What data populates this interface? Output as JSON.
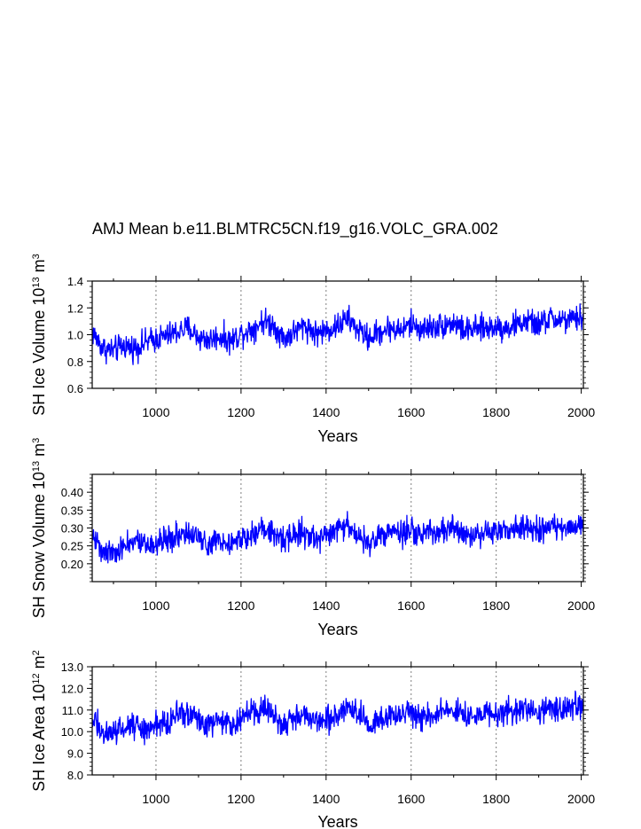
{
  "title": "AMJ Mean b.e11.BLMTRC5CN.f19_g16.VOLC_GRA.002",
  "colors": {
    "series": "#0000ff",
    "axis": "#000000",
    "refline": "#7f7f7f"
  },
  "chart_data": [
    {
      "type": "line",
      "ylabel": "SH Ice Volume 10^13 m^3",
      "xlabel": "Years",
      "xlim": [
        850,
        2005
      ],
      "ylim": [
        0.6,
        1.4
      ],
      "xticks": [
        "1000",
        "1200",
        "1400",
        "1600",
        "1800",
        "2000"
      ],
      "yticks": [
        "0.6",
        "0.8",
        "1.0",
        "1.2",
        "1.4"
      ],
      "ref_x": [
        1000,
        1200,
        1400,
        1600,
        1800,
        2000
      ],
      "series": [
        {
          "x": [
            850,
            875,
            900,
            925,
            950,
            975,
            1000,
            1025,
            1050,
            1075,
            1100,
            1125,
            1150,
            1175,
            1200,
            1225,
            1250,
            1275,
            1300,
            1325,
            1350,
            1375,
            1400,
            1425,
            1450,
            1475,
            1500,
            1525,
            1550,
            1575,
            1600,
            1625,
            1650,
            1675,
            1700,
            1725,
            1750,
            1775,
            1800,
            1825,
            1850,
            1875,
            1900,
            1925,
            1950,
            1975,
            2000
          ],
          "values": [
            1.02,
            0.9,
            0.88,
            0.92,
            0.9,
            0.94,
            0.97,
            0.99,
            1.02,
            1.05,
            0.98,
            0.96,
            0.99,
            0.95,
            1.01,
            1.04,
            1.1,
            1.08,
            0.97,
            1.02,
            1.07,
            1.01,
            1.03,
            1.06,
            1.12,
            1.04,
            0.97,
            1.02,
            1.05,
            1.03,
            1.08,
            1.04,
            1.06,
            1.07,
            1.09,
            1.03,
            1.04,
            1.05,
            1.06,
            1.05,
            1.08,
            1.1,
            1.07,
            1.12,
            1.11,
            1.1,
            1.13
          ]
        }
      ]
    },
    {
      "type": "line",
      "ylabel": "SH Snow Volume 10^13 m^3",
      "xlabel": "Years",
      "xlim": [
        850,
        2005
      ],
      "ylim": [
        0.15,
        0.45
      ],
      "xticks": [
        "1000",
        "1200",
        "1400",
        "1600",
        "1800",
        "2000"
      ],
      "yticks": [
        "0.20",
        "0.25",
        "0.30",
        "0.35",
        "0.40"
      ],
      "ref_x": [
        1000,
        1200,
        1400,
        1600,
        1800,
        2000
      ],
      "series": [
        {
          "x": [
            850,
            875,
            900,
            925,
            950,
            975,
            1000,
            1025,
            1050,
            1075,
            1100,
            1125,
            1150,
            1175,
            1200,
            1225,
            1250,
            1275,
            1300,
            1325,
            1350,
            1375,
            1400,
            1425,
            1450,
            1475,
            1500,
            1525,
            1550,
            1575,
            1600,
            1625,
            1650,
            1675,
            1700,
            1725,
            1750,
            1775,
            1800,
            1825,
            1850,
            1875,
            1900,
            1925,
            1950,
            1975,
            2000
          ],
          "values": [
            0.28,
            0.24,
            0.23,
            0.25,
            0.26,
            0.25,
            0.26,
            0.27,
            0.28,
            0.28,
            0.27,
            0.26,
            0.27,
            0.26,
            0.27,
            0.28,
            0.3,
            0.29,
            0.27,
            0.28,
            0.29,
            0.27,
            0.28,
            0.29,
            0.31,
            0.28,
            0.26,
            0.28,
            0.29,
            0.28,
            0.29,
            0.28,
            0.29,
            0.29,
            0.3,
            0.28,
            0.28,
            0.29,
            0.29,
            0.29,
            0.3,
            0.3,
            0.29,
            0.31,
            0.3,
            0.3,
            0.31
          ]
        }
      ]
    },
    {
      "type": "line",
      "ylabel": "SH Ice Area 10^12 m^2",
      "xlabel": "Years",
      "xlim": [
        850,
        2005
      ],
      "ylim": [
        8.0,
        13.0
      ],
      "xticks": [
        "1000",
        "1200",
        "1400",
        "1600",
        "1800",
        "2000"
      ],
      "yticks": [
        "8.0",
        "9.0",
        "10.0",
        "11.0",
        "12.0",
        "13.0"
      ],
      "ref_x": [
        1000,
        1200,
        1400,
        1600,
        1800,
        2000
      ],
      "series": [
        {
          "x": [
            850,
            875,
            900,
            925,
            950,
            975,
            1000,
            1025,
            1050,
            1075,
            1100,
            1125,
            1150,
            1175,
            1200,
            1225,
            1250,
            1275,
            1300,
            1325,
            1350,
            1375,
            1400,
            1425,
            1450,
            1475,
            1500,
            1525,
            1550,
            1575,
            1600,
            1625,
            1650,
            1675,
            1700,
            1725,
            1750,
            1775,
            1800,
            1825,
            1850,
            1875,
            1900,
            1925,
            1950,
            1975,
            2000
          ],
          "values": [
            10.6,
            10.0,
            9.9,
            10.2,
            10.3,
            10.1,
            10.3,
            10.5,
            10.8,
            10.9,
            10.5,
            10.3,
            10.6,
            10.4,
            10.6,
            10.8,
            11.1,
            10.9,
            10.4,
            10.7,
            10.8,
            10.5,
            10.6,
            10.8,
            11.2,
            10.8,
            10.3,
            10.6,
            10.8,
            10.7,
            10.9,
            10.7,
            10.8,
            10.9,
            11.0,
            10.7,
            10.7,
            10.8,
            10.9,
            10.8,
            11.0,
            11.0,
            10.9,
            11.2,
            11.1,
            11.0,
            11.2
          ]
        }
      ]
    }
  ]
}
